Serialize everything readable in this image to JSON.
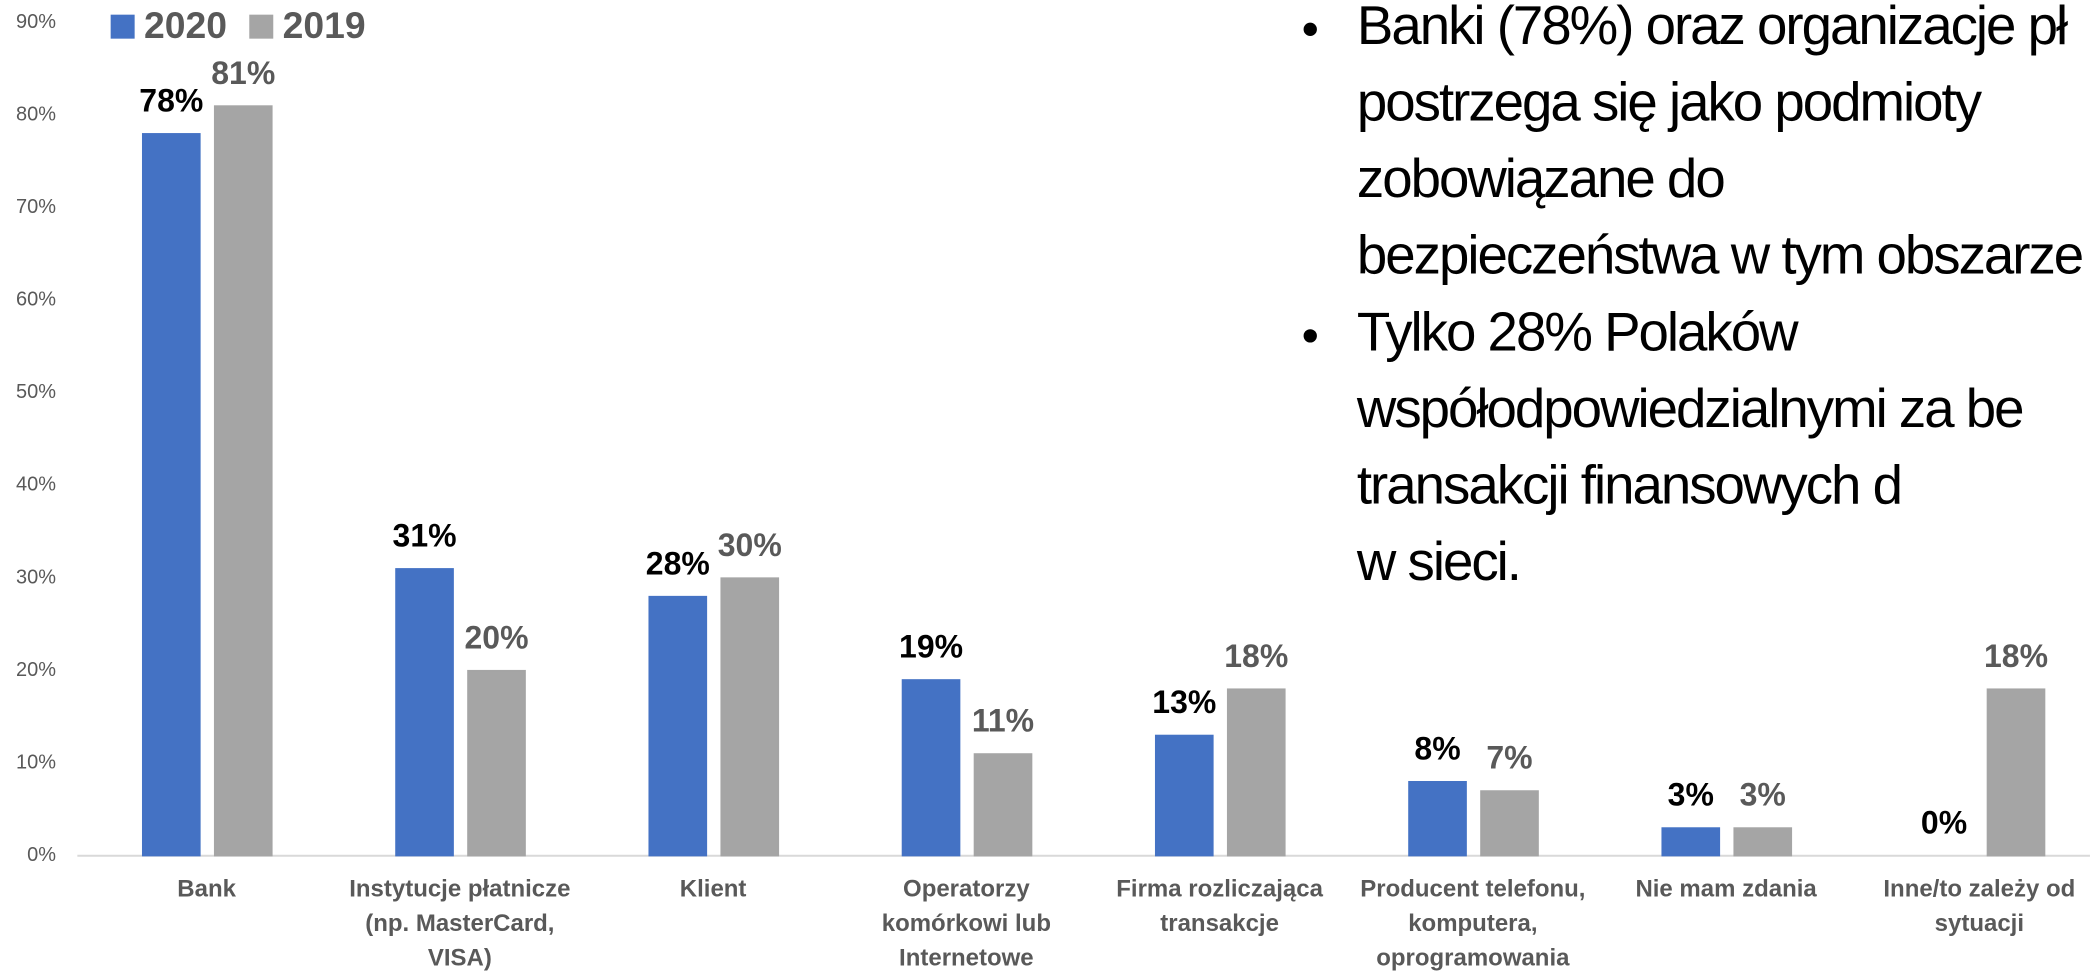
{
  "chart_data": {
    "type": "bar",
    "categories": [
      "Bank",
      "Instytucje płatnicze\n(np. MasterCard,\nVISA)",
      "Klient",
      "Operatorzy\nkomórkowi lub\nInternetowe",
      "Firma rozliczająca\ntransakcje",
      "Producent telefonu,\nkomputera,\noprogramowania",
      "Nie mam zdania",
      "Inne/to zależy od\nsytuacji"
    ],
    "series": [
      {
        "name": "2020",
        "color": "#4472c4",
        "values": [
          78,
          31,
          28,
          19,
          13,
          8,
          3,
          0
        ],
        "value_labels": [
          "78%",
          "31%",
          "28%",
          "19%",
          "13%",
          "8%",
          "3%",
          "0%"
        ]
      },
      {
        "name": "2019",
        "color": "#a5a5a5",
        "values": [
          81,
          20,
          30,
          11,
          18,
          7,
          3,
          18
        ],
        "value_labels": [
          "81%",
          "20%",
          "30%",
          "11%",
          "18%",
          "7%",
          "3%",
          "18%"
        ]
      }
    ],
    "ylim": [
      0,
      90
    ],
    "yticks": [
      {
        "value": 0,
        "label": "0%"
      },
      {
        "value": 10,
        "label": "10%"
      },
      {
        "value": 20,
        "label": "20%"
      },
      {
        "value": 30,
        "label": "30%"
      },
      {
        "value": 40,
        "label": "40%"
      },
      {
        "value": 50,
        "label": "50%"
      },
      {
        "value": 60,
        "label": "60%"
      },
      {
        "value": 70,
        "label": "70%"
      },
      {
        "value": 80,
        "label": "80%"
      },
      {
        "value": 90,
        "label": "90%"
      }
    ],
    "legend": "top-left",
    "grid": false
  },
  "bullets": [
    {
      "lines": [
        "Banki (78%) oraz organizacje pł",
        "postrzega się jako podmioty",
        "zobowiązane do",
        "bezpieczeństwa w tym obszarze"
      ]
    },
    {
      "lines": [
        "Tylko 28% Polaków",
        "współodpowiedzialnymi za be",
        "transakcji finansowych d",
        "w sieci."
      ]
    }
  ]
}
